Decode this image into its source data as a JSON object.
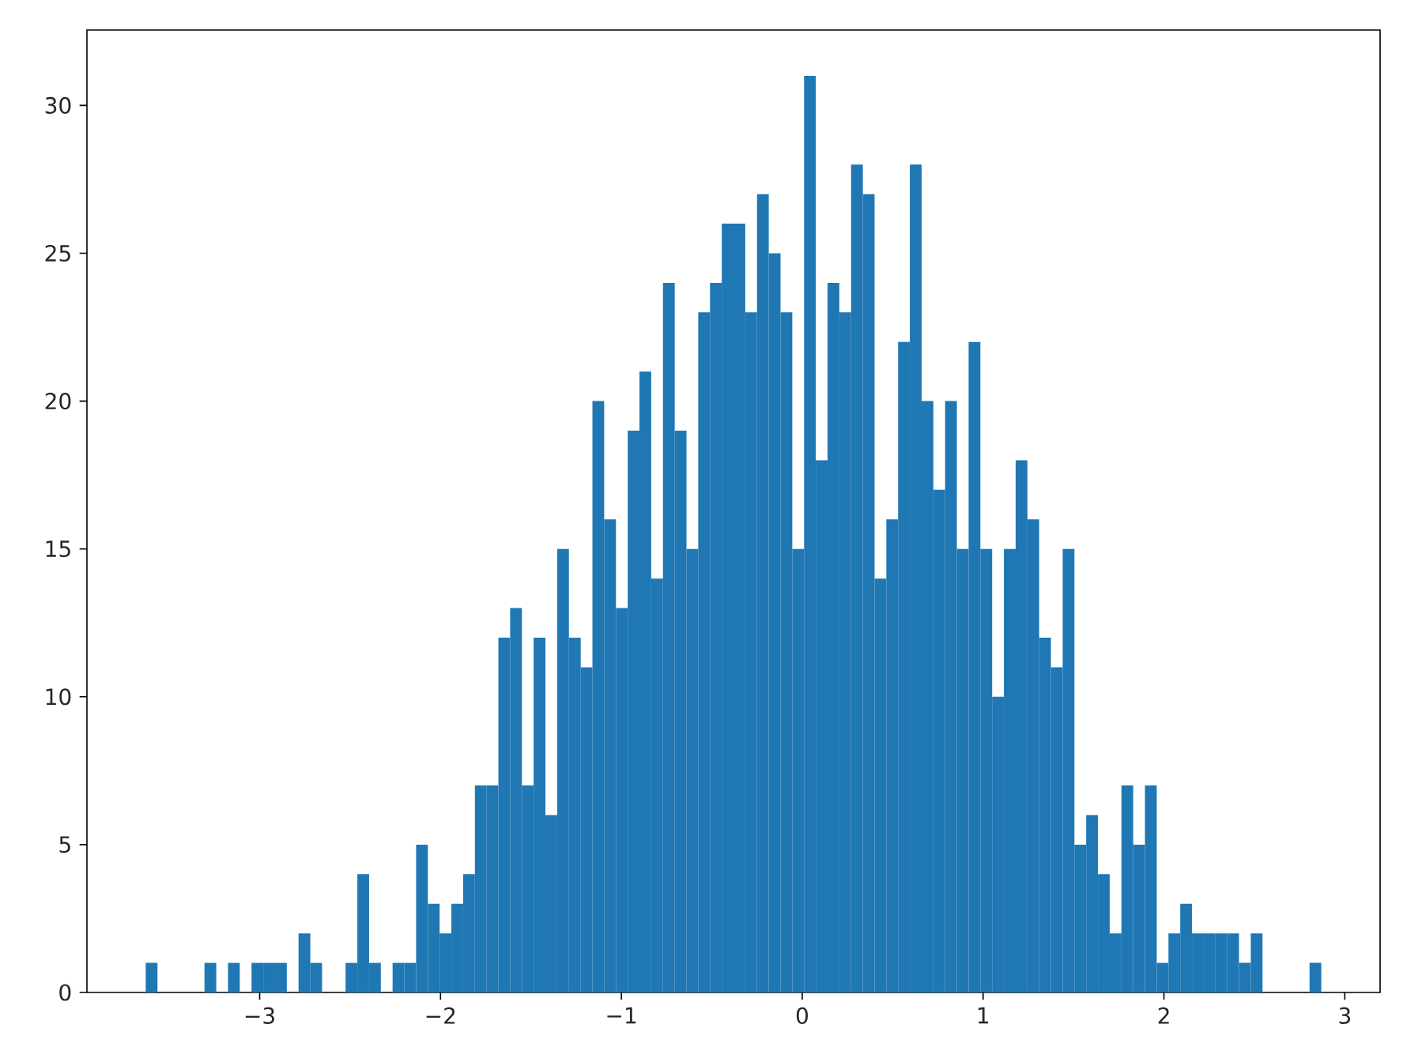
{
  "chart_data": {
    "type": "histogram",
    "bins": [
      -3.63,
      -3.565,
      -3.5,
      -3.435,
      -3.37,
      -3.305,
      -3.24,
      -3.175,
      -3.11,
      -3.045,
      -2.98,
      -2.915,
      -2.85,
      -2.785,
      -2.72,
      -2.655,
      -2.59,
      -2.525,
      -2.46,
      -2.395,
      -2.33,
      -2.265,
      -2.2,
      -2.135,
      -2.07,
      -2.005,
      -1.94,
      -1.875,
      -1.81,
      -1.745,
      -1.68,
      -1.615,
      -1.55,
      -1.485,
      -1.42,
      -1.355,
      -1.29,
      -1.225,
      -1.16,
      -1.095,
      -1.03,
      -0.965,
      -0.9,
      -0.835,
      -0.77,
      -0.705,
      -0.64,
      -0.575,
      -0.51,
      -0.445,
      -0.38,
      -0.315,
      -0.25,
      -0.185,
      -0.12,
      -0.055,
      0.01,
      0.075,
      0.14,
      0.205,
      0.27,
      0.335,
      0.4,
      0.465,
      0.53,
      0.595,
      0.66,
      0.725,
      0.79,
      0.855,
      0.92,
      0.985,
      1.05,
      1.115,
      1.18,
      1.245,
      1.31,
      1.375,
      1.44,
      1.505,
      1.57,
      1.635,
      1.7,
      1.765,
      1.83,
      1.895,
      1.96,
      2.025,
      2.09,
      2.155,
      2.22,
      2.285,
      2.35,
      2.415,
      2.48,
      2.545,
      2.61,
      2.675,
      2.74,
      2.805,
      2.87
    ],
    "values": [
      1,
      0,
      0,
      0,
      0,
      1,
      0,
      1,
      0,
      1,
      1,
      1,
      0,
      2,
      1,
      0,
      0,
      1,
      4,
      1,
      0,
      1,
      1,
      5,
      3,
      2,
      3,
      4,
      7,
      7,
      12,
      13,
      7,
      12,
      6,
      15,
      12,
      11,
      20,
      16,
      13,
      19,
      21,
      14,
      24,
      19,
      15,
      23,
      24,
      26,
      26,
      23,
      27,
      25,
      23,
      15,
      31,
      18,
      24,
      23,
      28,
      27,
      14,
      16,
      22,
      28,
      20,
      17,
      20,
      15,
      22,
      15,
      10,
      15,
      18,
      16,
      12,
      11,
      15,
      5,
      6,
      4,
      2,
      7,
      5,
      7,
      1,
      2,
      3,
      2,
      2,
      2,
      2,
      1,
      2,
      0,
      0,
      0,
      0,
      1
    ],
    "color": "#1f77b4",
    "xlim": [
      -3.955,
      3.195
    ],
    "ylim": [
      0,
      32.55
    ],
    "xticks": [
      {
        "value": -3,
        "label": "−3"
      },
      {
        "value": -2,
        "label": "−2"
      },
      {
        "value": -1,
        "label": "−1"
      },
      0,
      1,
      2,
      3
    ],
    "yticks": [
      0,
      5,
      10,
      15,
      20,
      25,
      30
    ]
  }
}
